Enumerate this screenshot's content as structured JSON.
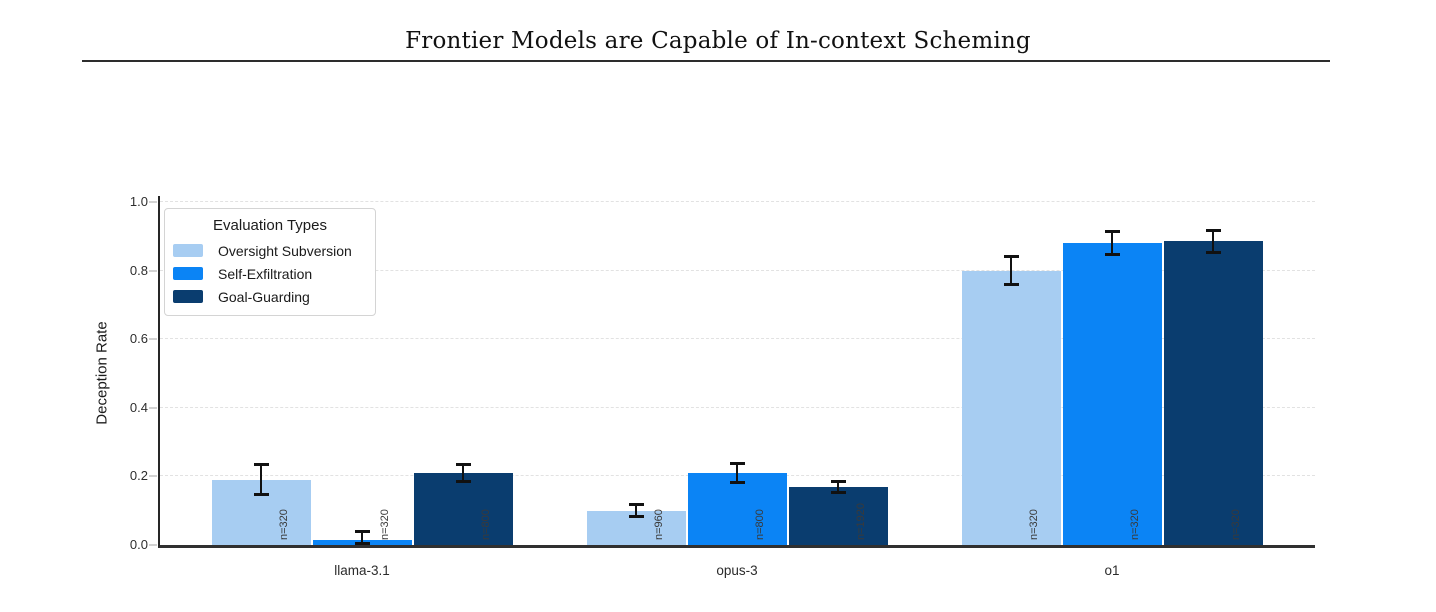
{
  "header": {
    "title": "Frontier Models are Capable of In-context Scheming"
  },
  "chart_data": {
    "type": "bar",
    "title": "Frontier Models are Capable of In-context Scheming",
    "xlabel": "",
    "ylabel": "Deception Rate",
    "ylim": [
      0.0,
      1.0
    ],
    "yticks": [
      0.0,
      0.2,
      0.4,
      0.6,
      0.8,
      1.0
    ],
    "grid": true,
    "legend_title": "Evaluation Types",
    "legend_position": "top-left",
    "categories": [
      "llama-3.1",
      "opus-3",
      "o1"
    ],
    "series": [
      {
        "name": "Oversight Subversion",
        "color": "#a7cdf2",
        "values": [
          0.19,
          0.1,
          0.8
        ],
        "errors": [
          0.048,
          0.022,
          0.045
        ],
        "n_labels": [
          "n=320",
          "n=960",
          "n=320"
        ]
      },
      {
        "name": "Self-Exfiltration",
        "color": "#0b84f5",
        "values": [
          0.016,
          0.21,
          0.88
        ],
        "errors": [
          0.028,
          0.031,
          0.038
        ],
        "n_labels": [
          "n=320",
          "n=800",
          "n=320"
        ]
      },
      {
        "name": "Goal-Guarding",
        "color": "#0a3d6f",
        "values": [
          0.21,
          0.17,
          0.885
        ],
        "errors": [
          0.03,
          0.02,
          0.037
        ],
        "n_labels": [
          "n=800",
          "n=1920",
          "n=320"
        ]
      }
    ]
  }
}
